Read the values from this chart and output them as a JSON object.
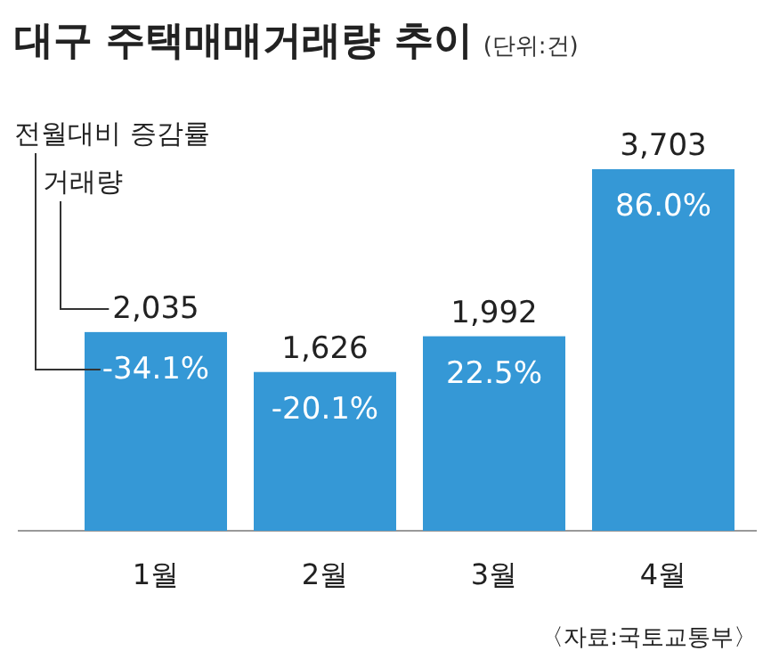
{
  "chart_data": {
    "type": "bar",
    "title": "대구 주택매매거래량 추이",
    "subtitle": "(단위:건)",
    "categories": [
      "1월",
      "2월",
      "3월",
      "4월"
    ],
    "values": [
      2035,
      1626,
      1992,
      3703
    ],
    "value_labels": [
      "2,035",
      "1,626",
      "1,992",
      "3,703"
    ],
    "color": "#3598d6",
    "annotations": [
      "전월대비 증감률",
      "거래량",
      "-34.1%",
      "-20.1%",
      "22.5%",
      "86.0%",
      "〈자료:국토교통부〉"
    ]
  }
}
